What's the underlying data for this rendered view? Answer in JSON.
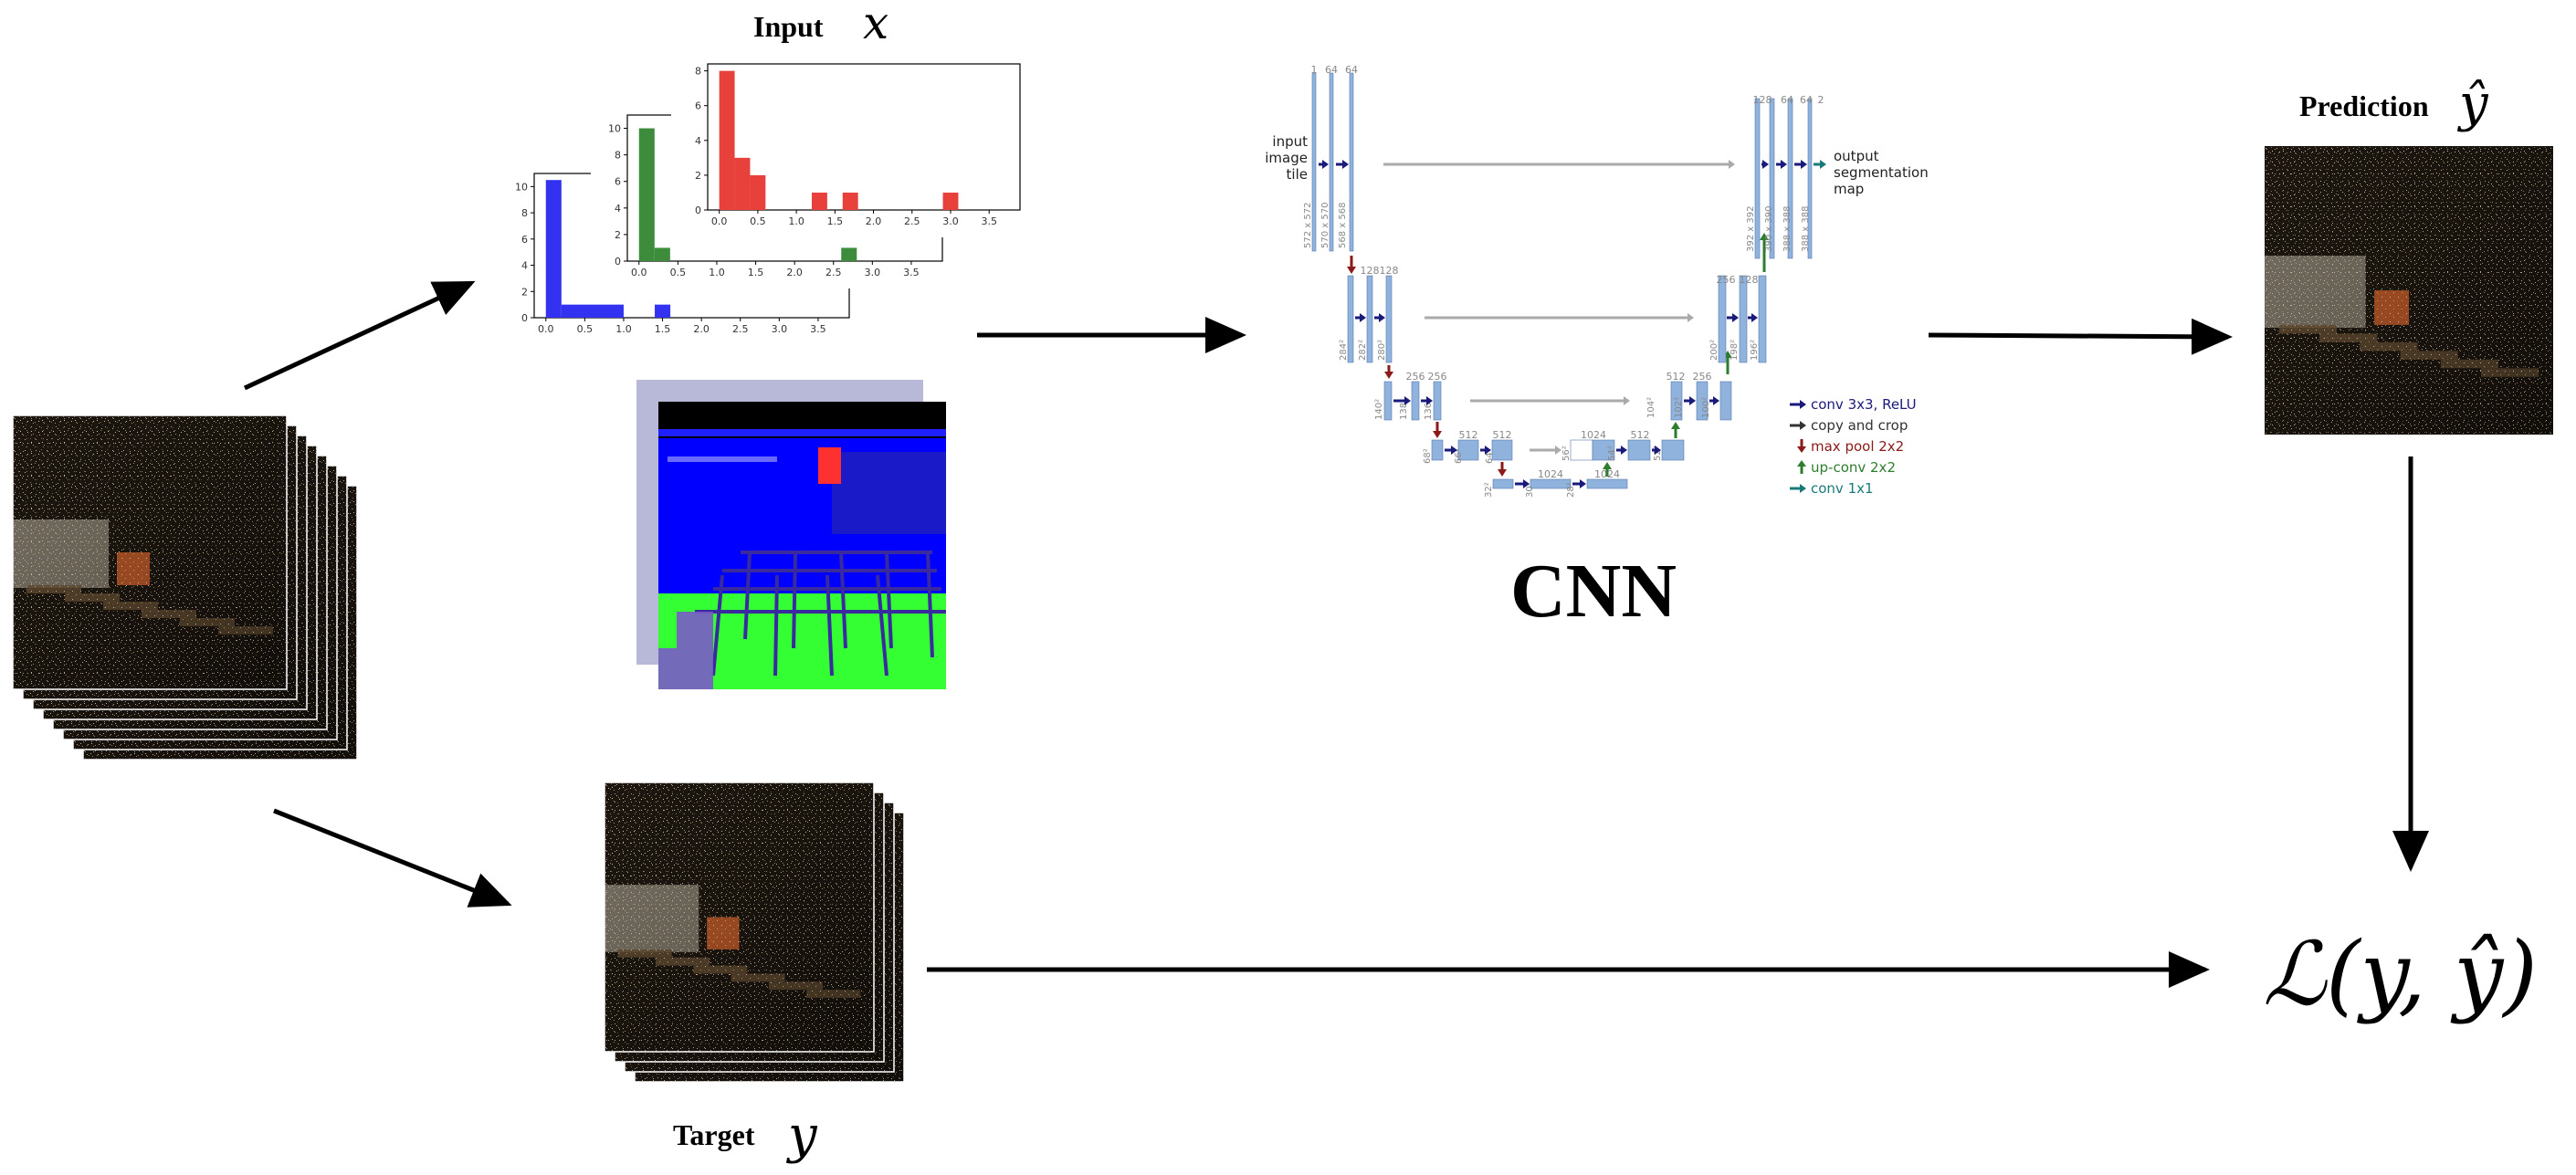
{
  "labels": {
    "input_word": "Input",
    "input_symbol": "x",
    "target_word": "Target",
    "target_symbol": "y",
    "prediction_word": "Prediction",
    "prediction_symbol": "ŷ",
    "cnn": "CNN",
    "loss": "ℒ(y, ŷ)"
  },
  "unet": {
    "input_text": [
      "input",
      "image",
      "tile"
    ],
    "output_text": [
      "output",
      "segmentation",
      "map"
    ],
    "channel_numbers": {
      "l1_enc": [
        "1",
        "64",
        "64"
      ],
      "l2_enc": [
        "128",
        "128"
      ],
      "l3_enc": [
        "256",
        "256"
      ],
      "l4_enc": [
        "512",
        "512"
      ],
      "bottom": [
        "1024",
        "1024"
      ],
      "l4_dec": [
        "1024",
        "512",
        "512"
      ],
      "l3_dec": [
        "512",
        "256",
        "256"
      ],
      "l2_dec": [
        "256",
        "128",
        "128"
      ],
      "l1_dec": [
        "128",
        "64",
        "64",
        "2"
      ]
    },
    "dims": {
      "l1_enc": [
        "572 x 572",
        "570 x 570",
        "568 x 568"
      ],
      "l2_enc": [
        "284²",
        "282²",
        "280²"
      ],
      "l3_enc": [
        "140²",
        "138²",
        "136²"
      ],
      "l4_enc": [
        "68²",
        "66²",
        "64²"
      ],
      "bottom": [
        "32²",
        "30²",
        "28²"
      ],
      "l4_dec": [
        "56²",
        "54²",
        "52²"
      ],
      "l3_dec": [
        "104²",
        "102²",
        "100²"
      ],
      "l2_dec": [
        "200²",
        "198²",
        "196²"
      ],
      "l1_dec": [
        "392 x 392",
        "390 x 390",
        "388 x 388",
        "388 x 388"
      ]
    },
    "legend": [
      {
        "text": "conv 3x3, ReLU",
        "color": "#1a1a7a",
        "icon": "arrow-right"
      },
      {
        "text": "copy and crop",
        "color": "#333333",
        "icon": "arrow-right"
      },
      {
        "text": "max pool 2x2",
        "color": "#8b1a1a",
        "icon": "arrow-down"
      },
      {
        "text": "up-conv 2x2",
        "color": "#2e7d2e",
        "icon": "arrow-up"
      },
      {
        "text": "conv 1x1",
        "color": "#1a7a7a",
        "icon": "arrow-right"
      }
    ]
  },
  "histograms": {
    "blue": {
      "color": "#3232f0",
      "x_ticks": [
        "0.0",
        "0.5",
        "1.0",
        "1.5",
        "2.0",
        "2.5",
        "3.0",
        "3.5"
      ],
      "y_ticks": [
        "0",
        "2",
        "4",
        "6",
        "8",
        "10"
      ],
      "bars": [
        {
          "x": 0.0,
          "w": 0.2,
          "h": 10.5
        },
        {
          "x": 0.2,
          "w": 0.8,
          "h": 1
        },
        {
          "x": 1.4,
          "w": 0.2,
          "h": 1
        }
      ]
    },
    "green": {
      "color": "#3c8c3c",
      "x_ticks": [
        "0.0",
        "0.5",
        "1.0",
        "1.5",
        "2.0",
        "2.5",
        "3.0",
        "3.5"
      ],
      "y_ticks": [
        "0",
        "2",
        "4",
        "6",
        "8",
        "10"
      ],
      "bars": [
        {
          "x": 0.0,
          "w": 0.2,
          "h": 10
        },
        {
          "x": 0.2,
          "w": 0.2,
          "h": 1
        },
        {
          "x": 2.6,
          "w": 0.2,
          "h": 1
        }
      ]
    },
    "red": {
      "color": "#e8413c",
      "x_ticks": [
        "0.0",
        "0.5",
        "1.0",
        "1.5",
        "2.0",
        "2.5",
        "3.0",
        "3.5"
      ],
      "y_ticks": [
        "0",
        "2",
        "4",
        "6",
        "8"
      ],
      "bars": [
        {
          "x": 0.0,
          "w": 0.2,
          "h": 8
        },
        {
          "x": 0.2,
          "w": 0.2,
          "h": 3
        },
        {
          "x": 0.4,
          "w": 0.2,
          "h": 2
        },
        {
          "x": 1.2,
          "w": 0.2,
          "h": 1
        },
        {
          "x": 1.6,
          "w": 0.2,
          "h": 1
        },
        {
          "x": 2.9,
          "w": 0.2,
          "h": 1
        }
      ]
    }
  },
  "colors": {
    "unet_block": "#8fb3dd",
    "arrow": "#000000",
    "copy_crop": "#aaaaaa"
  }
}
